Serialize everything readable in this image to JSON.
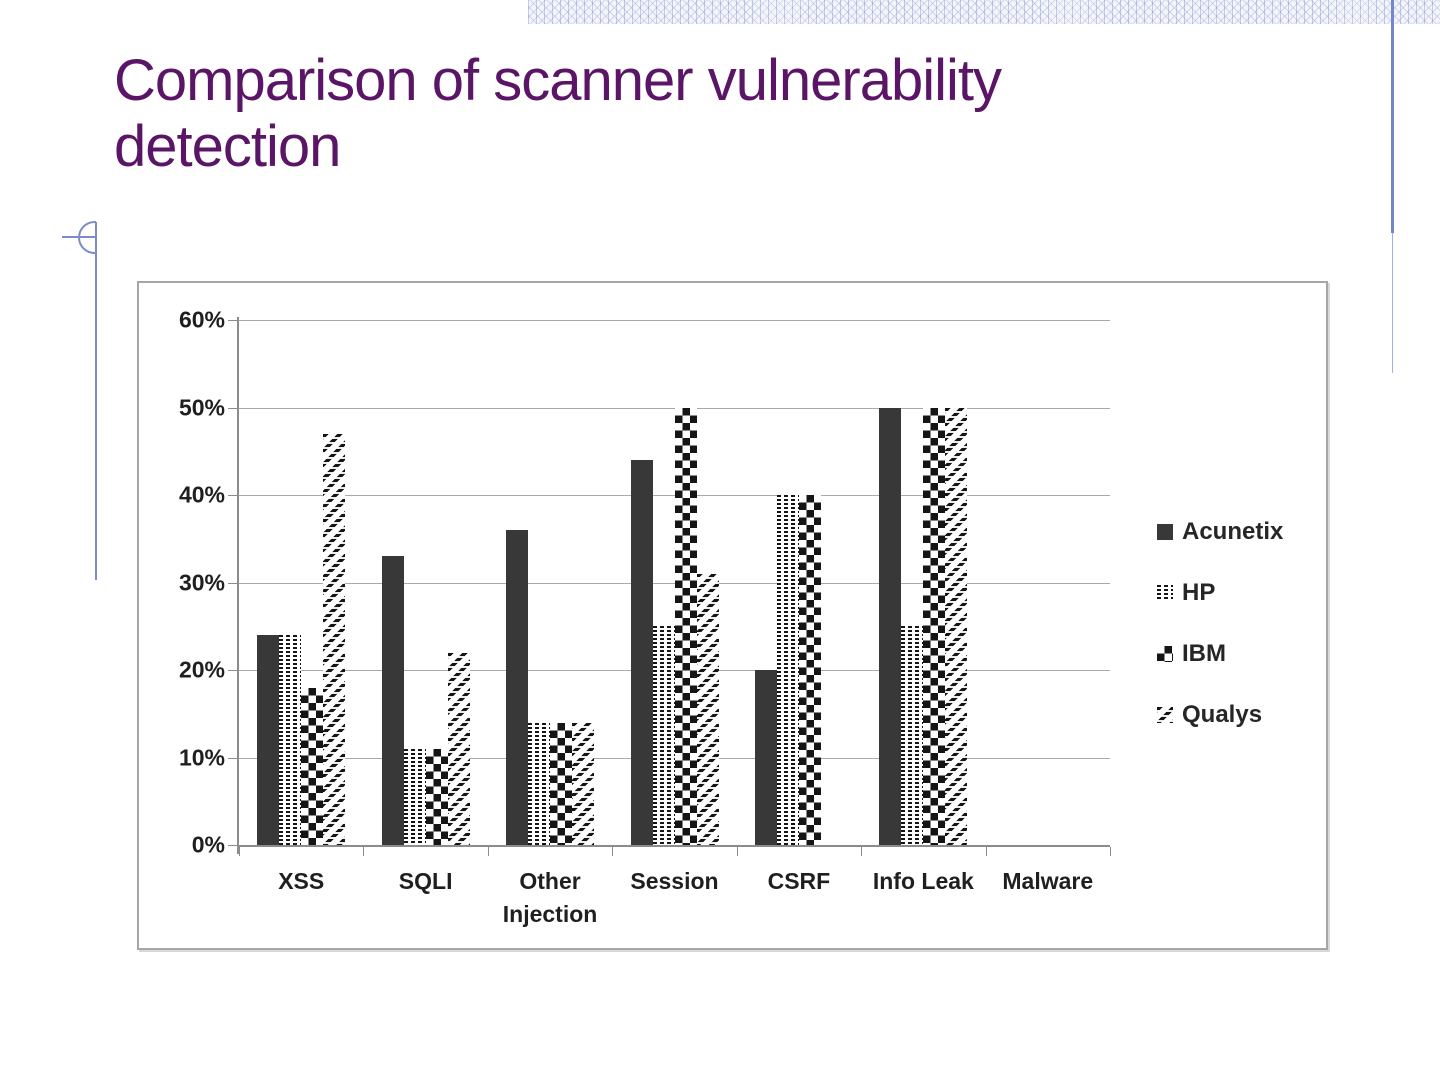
{
  "slide": {
    "title": "Comparison of scanner vulnerability\ndetection"
  },
  "colors": {
    "title_text": "#5b1566",
    "decor_blue": "#7288c8",
    "bar_solid": "#383838",
    "axis_text": "#1f1f1f",
    "gridline": "#a9a9a9"
  },
  "chart_data": {
    "type": "bar",
    "title": "",
    "xlabel": "",
    "ylabel": "",
    "categories": [
      "XSS",
      "SQLI",
      "Other\nInjection",
      "Session",
      "CSRF",
      "Info Leak",
      "Malware"
    ],
    "series": [
      {
        "name": "Acunetix",
        "pattern": "solid",
        "values": [
          24,
          33,
          36,
          44,
          20,
          50,
          0
        ]
      },
      {
        "name": "HP",
        "pattern": "dots",
        "values": [
          24,
          11,
          14,
          25,
          40,
          25,
          0
        ]
      },
      {
        "name": "IBM",
        "pattern": "checker",
        "values": [
          18,
          11,
          14,
          50,
          40,
          50,
          0
        ]
      },
      {
        "name": "Qualys",
        "pattern": "diagonal",
        "values": [
          47,
          22,
          14,
          31,
          0,
          50,
          0
        ]
      }
    ],
    "ylim": [
      0,
      60
    ],
    "yticks": [
      "60%",
      "50%",
      "40%",
      "30%",
      "20%",
      "10%",
      "0%"
    ],
    "grid": true,
    "legend_position": "right"
  }
}
